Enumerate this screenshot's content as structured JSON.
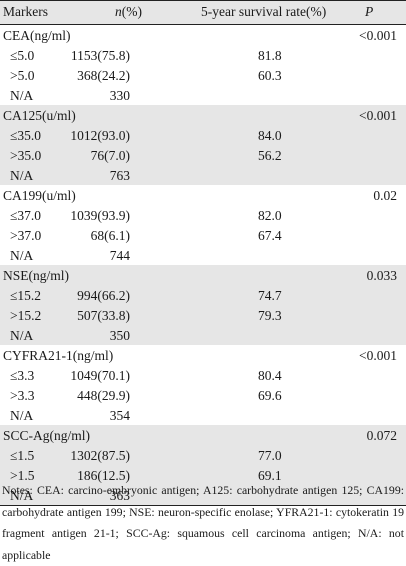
{
  "header": {
    "markers": "Markers",
    "n_prefix": "n",
    "n_suffix": "(%)",
    "survival": "5-year survival rate(%)",
    "p": "P"
  },
  "groups": [
    {
      "name": "CEA(ng/ml)",
      "p": "<0.001",
      "rows": [
        {
          "label": "≤5.0",
          "n": "1153(75.8)",
          "survival": "81.8"
        },
        {
          "label": ">5.0",
          "n": "368(24.2)",
          "survival": "60.3"
        },
        {
          "label": "N/A",
          "n": "330",
          "survival": ""
        }
      ]
    },
    {
      "name": "CA125(u/ml)",
      "p": "<0.001",
      "rows": [
        {
          "label": "≤35.0",
          "n": "1012(93.0)",
          "survival": "84.0"
        },
        {
          "label": ">35.0",
          "n": "76(7.0)",
          "survival": "56.2"
        },
        {
          "label": "N/A",
          "n": "763",
          "survival": ""
        }
      ]
    },
    {
      "name": "CA199(u/ml)",
      "p": "0.02",
      "rows": [
        {
          "label": "≤37.0",
          "n": "1039(93.9)",
          "survival": "82.0"
        },
        {
          "label": ">37.0",
          "n": "68(6.1)",
          "survival": "67.4"
        },
        {
          "label": "N/A",
          "n": "744",
          "survival": ""
        }
      ]
    },
    {
      "name": "NSE(ng/ml)",
      "p": "0.033",
      "rows": [
        {
          "label": "≤15.2",
          "n": "994(66.2)",
          "survival": "74.7"
        },
        {
          "label": ">15.2",
          "n": "507(33.8)",
          "survival": "79.3"
        },
        {
          "label": "N/A",
          "n": "350",
          "survival": ""
        }
      ]
    },
    {
      "name": "CYFRA21-1(ng/ml)",
      "p": "<0.001",
      "rows": [
        {
          "label": "≤3.3",
          "n": "1049(70.1)",
          "survival": "80.4"
        },
        {
          "label": ">3.3",
          "n": "448(29.9)",
          "survival": "69.6"
        },
        {
          "label": "N/A",
          "n": "354",
          "survival": ""
        }
      ]
    },
    {
      "name": "SCC-Ag(ng/ml)",
      "p": "0.072",
      "rows": [
        {
          "label": "≤1.5",
          "n": "1302(87.5)",
          "survival": "77.0"
        },
        {
          "label": ">1.5",
          "n": "186(12.5)",
          "survival": "69.1"
        },
        {
          "label": "N/A",
          "n": "363",
          "survival": ""
        }
      ]
    }
  ],
  "notes": "Notes: CEA: carcino-embryonic antigen; A125: carbohydrate antigen 125; CA199: carbohydrate antigen 199; NSE: neuron-specific enolase; YFRA21-1: cytokeratin 19 fragment antigen 21-1; SCC-Ag: squamous cell carcinoma antigen; N/A: not applicable"
}
